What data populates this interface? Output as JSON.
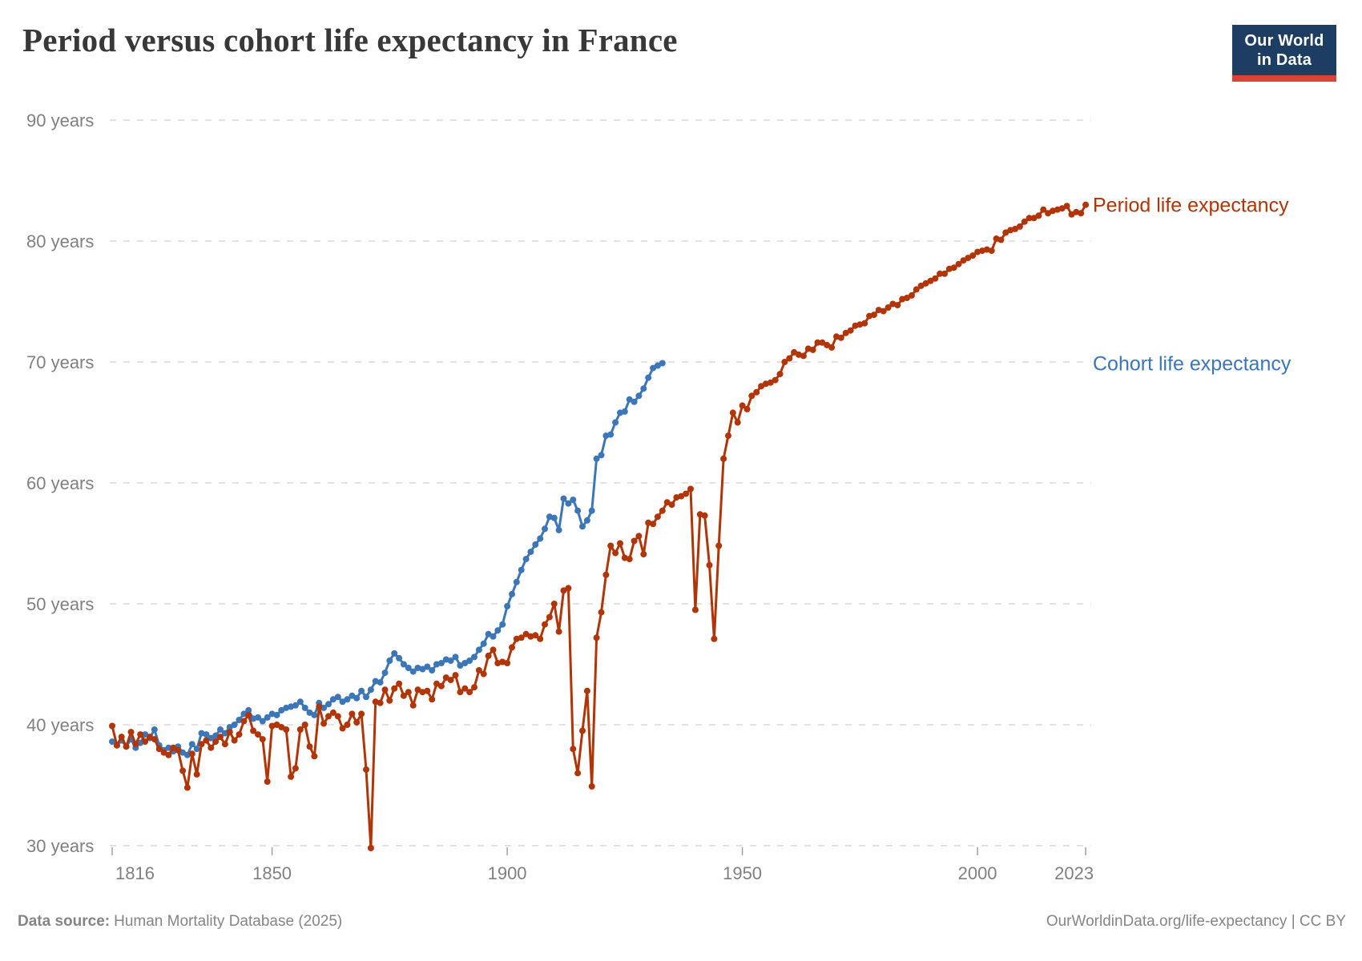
{
  "header": {
    "title": "Period versus cohort life expectancy in France"
  },
  "logo": {
    "line1": "Our World",
    "line2": "in Data",
    "bg_color": "#1d3d63",
    "accent_color": "#e0403a"
  },
  "footer": {
    "source_label": "Data source:",
    "source_value": "Human Mortality Database (2025)",
    "rights": "OurWorldinData.org/life-expectancy | CC BY"
  },
  "chart_data": {
    "type": "line",
    "title": "Period versus cohort life expectancy in France",
    "xlabel": "",
    "ylabel": "",
    "xlim": [
      1816,
      2023
    ],
    "ylim": [
      30,
      90
    ],
    "grid": "horizontal-dashed",
    "legend_position": "right-edge-line-labels",
    "markers": true,
    "x_ticks": [
      {
        "value": 1816,
        "label": "1816"
      },
      {
        "value": 1850,
        "label": "1850"
      },
      {
        "value": 1900,
        "label": "1900"
      },
      {
        "value": 1950,
        "label": "1950"
      },
      {
        "value": 2000,
        "label": "2000"
      },
      {
        "value": 2023,
        "label": "2023"
      }
    ],
    "y_ticks": [
      {
        "value": 90,
        "label": "90 years"
      },
      {
        "value": 80,
        "label": "80 years"
      },
      {
        "value": 70,
        "label": "70 years"
      },
      {
        "value": 60,
        "label": "60 years"
      },
      {
        "value": 50,
        "label": "50 years"
      },
      {
        "value": 40,
        "label": "40 years"
      },
      {
        "value": 30,
        "label": "30 years"
      }
    ],
    "style": {
      "grid_color": "#d9d9d9",
      "tick_color": "#a0a0a0",
      "axis_label_color": "#808080",
      "title_color": "#383838",
      "footer_color": "#858585"
    },
    "series": [
      {
        "name": "Cohort life expectancy",
        "slug": "cohort-life-expectancy",
        "color": "#3b76b8",
        "start_year": 1816,
        "values": [
          38.6,
          38.3,
          38.7,
          38.2,
          38.8,
          38.1,
          38.5,
          39.2,
          38.9,
          39.6,
          38.3,
          37.9,
          38.1,
          37.8,
          38.2,
          37.7,
          37.5,
          38.4,
          38.0,
          39.3,
          39.2,
          38.9,
          39.1,
          39.6,
          39.3,
          39.8,
          40.0,
          40.4,
          40.9,
          41.2,
          40.5,
          40.6,
          40.3,
          40.6,
          40.9,
          40.8,
          41.2,
          41.4,
          41.5,
          41.6,
          41.9,
          41.4,
          41.0,
          40.8,
          41.8,
          41.4,
          41.7,
          42.1,
          42.3,
          41.9,
          42.1,
          42.4,
          42.2,
          42.8,
          42.3,
          42.9,
          43.6,
          43.5,
          44.3,
          45.3,
          45.9,
          45.5,
          45.0,
          44.7,
          44.4,
          44.7,
          44.6,
          44.8,
          44.5,
          45.0,
          45.1,
          45.4,
          45.3,
          45.6,
          44.9,
          45.1,
          45.3,
          45.6,
          46.2,
          46.7,
          47.5,
          47.3,
          47.8,
          48.3,
          49.8,
          50.8,
          51.8,
          52.8,
          53.7,
          54.3,
          54.9,
          55.4,
          56.2,
          57.2,
          57.1,
          56.1,
          58.7,
          58.3,
          58.6,
          57.7,
          56.4,
          56.9,
          57.7,
          62.0,
          62.3,
          63.9,
          64.0,
          65.0,
          65.8,
          65.9,
          66.9,
          66.7,
          67.2,
          67.8,
          68.7,
          69.5,
          69.7,
          69.9
        ]
      },
      {
        "name": "Period life expectancy",
        "slug": "period-life-expectancy",
        "color": "#b13507",
        "start_year": 1816,
        "values": [
          39.9,
          38.3,
          39.0,
          38.2,
          39.4,
          38.4,
          39.2,
          38.6,
          39.0,
          38.8,
          38.0,
          37.7,
          37.5,
          38.1,
          37.9,
          36.2,
          34.8,
          37.6,
          35.9,
          38.4,
          38.7,
          38.1,
          38.6,
          39.0,
          38.4,
          39.4,
          38.7,
          39.2,
          40.3,
          40.8,
          39.5,
          39.2,
          38.8,
          35.3,
          39.9,
          40.0,
          39.8,
          39.6,
          35.7,
          36.4,
          39.6,
          40.0,
          38.2,
          37.4,
          41.5,
          40.1,
          40.7,
          41.0,
          40.7,
          39.7,
          40.0,
          40.9,
          40.2,
          40.9,
          36.3,
          29.8,
          41.9,
          41.8,
          42.9,
          42.0,
          43.0,
          43.4,
          42.4,
          42.7,
          41.6,
          42.9,
          42.7,
          42.8,
          42.1,
          43.4,
          43.2,
          43.9,
          43.7,
          44.1,
          42.7,
          43.0,
          42.7,
          43.1,
          44.5,
          44.2,
          45.7,
          46.2,
          45.1,
          45.2,
          45.1,
          46.4,
          47.1,
          47.2,
          47.5,
          47.3,
          47.4,
          47.1,
          48.3,
          48.9,
          50.0,
          47.7,
          51.1,
          51.3,
          38.0,
          36.0,
          39.5,
          42.8,
          34.9,
          47.2,
          49.3,
          52.4,
          54.8,
          54.2,
          55.0,
          53.8,
          53.7,
          55.2,
          55.6,
          54.1,
          56.7,
          56.6,
          57.2,
          57.7,
          58.4,
          58.2,
          58.8,
          58.9,
          59.1,
          59.5,
          49.5,
          57.4,
          57.3,
          53.2,
          47.1,
          54.8,
          62.0,
          63.9,
          65.8,
          65.0,
          66.4,
          66.1,
          67.2,
          67.5,
          68.0,
          68.2,
          68.3,
          68.5,
          69.0,
          70.0,
          70.3,
          70.8,
          70.6,
          70.5,
          71.1,
          71.0,
          71.6,
          71.6,
          71.4,
          71.2,
          72.1,
          72.0,
          72.4,
          72.6,
          73.0,
          73.1,
          73.2,
          73.8,
          73.9,
          74.3,
          74.2,
          74.5,
          74.8,
          74.7,
          75.2,
          75.3,
          75.5,
          76.0,
          76.3,
          76.5,
          76.7,
          76.9,
          77.3,
          77.3,
          77.7,
          77.8,
          78.1,
          78.4,
          78.6,
          78.8,
          79.1,
          79.2,
          79.3,
          79.2,
          80.2,
          80.1,
          80.7,
          80.9,
          81.0,
          81.2,
          81.6,
          81.9,
          81.9,
          82.1,
          82.6,
          82.3,
          82.5,
          82.6,
          82.7,
          82.9,
          82.2,
          82.4,
          82.3,
          83.0
        ]
      }
    ]
  }
}
